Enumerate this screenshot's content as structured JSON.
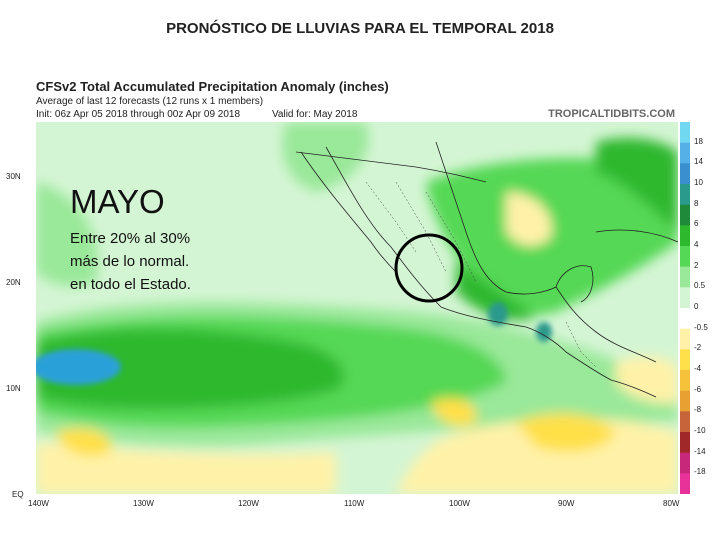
{
  "slide_title": "PRONÓSTICO DE LLUVIAS PARA EL TEMPORAL 2018",
  "map_header": {
    "title": "CFSv2 Total Accumulated Precipitation Anomaly (inches)",
    "subtitle": "Average of last 12 forecasts (12 runs x 1 members)",
    "init_range": "Init: 06z Apr 05 2018 through 00z Apr 09 2018",
    "valid": "Valid for: May 2018"
  },
  "credit": "TROPICALTIDBITS.COM",
  "colorbar": {
    "labels": [
      "18",
      "14",
      "10",
      "8",
      "6",
      "4",
      "2",
      "0.5",
      "0",
      "-0.5",
      "-2",
      "-4",
      "-6",
      "-8",
      "-10",
      "-14",
      "-18"
    ],
    "colors": [
      "#70d8f0",
      "#55b0e8",
      "#3a8fcf",
      "#2a9a8c",
      "#1f8a3a",
      "#2eb82e",
      "#55d855",
      "#9ae89a",
      "#d4f5d4",
      "#ffffff",
      "#fff2a8",
      "#ffe04a",
      "#f5c23a",
      "#e8a032",
      "#c8643a",
      "#a02828",
      "#c8287a",
      "#e8329a"
    ]
  },
  "axes": {
    "lat_labels": [
      "30N",
      "20N",
      "10N",
      "EQ"
    ],
    "lon_labels": [
      "140W",
      "130W",
      "120W",
      "110W",
      "100W",
      "90W",
      "80W"
    ]
  },
  "annotation": {
    "month": "MAYO",
    "line1": "Entre 20% al 30%",
    "line2": "más de lo normal.",
    "line3": "en todo el Estado."
  }
}
